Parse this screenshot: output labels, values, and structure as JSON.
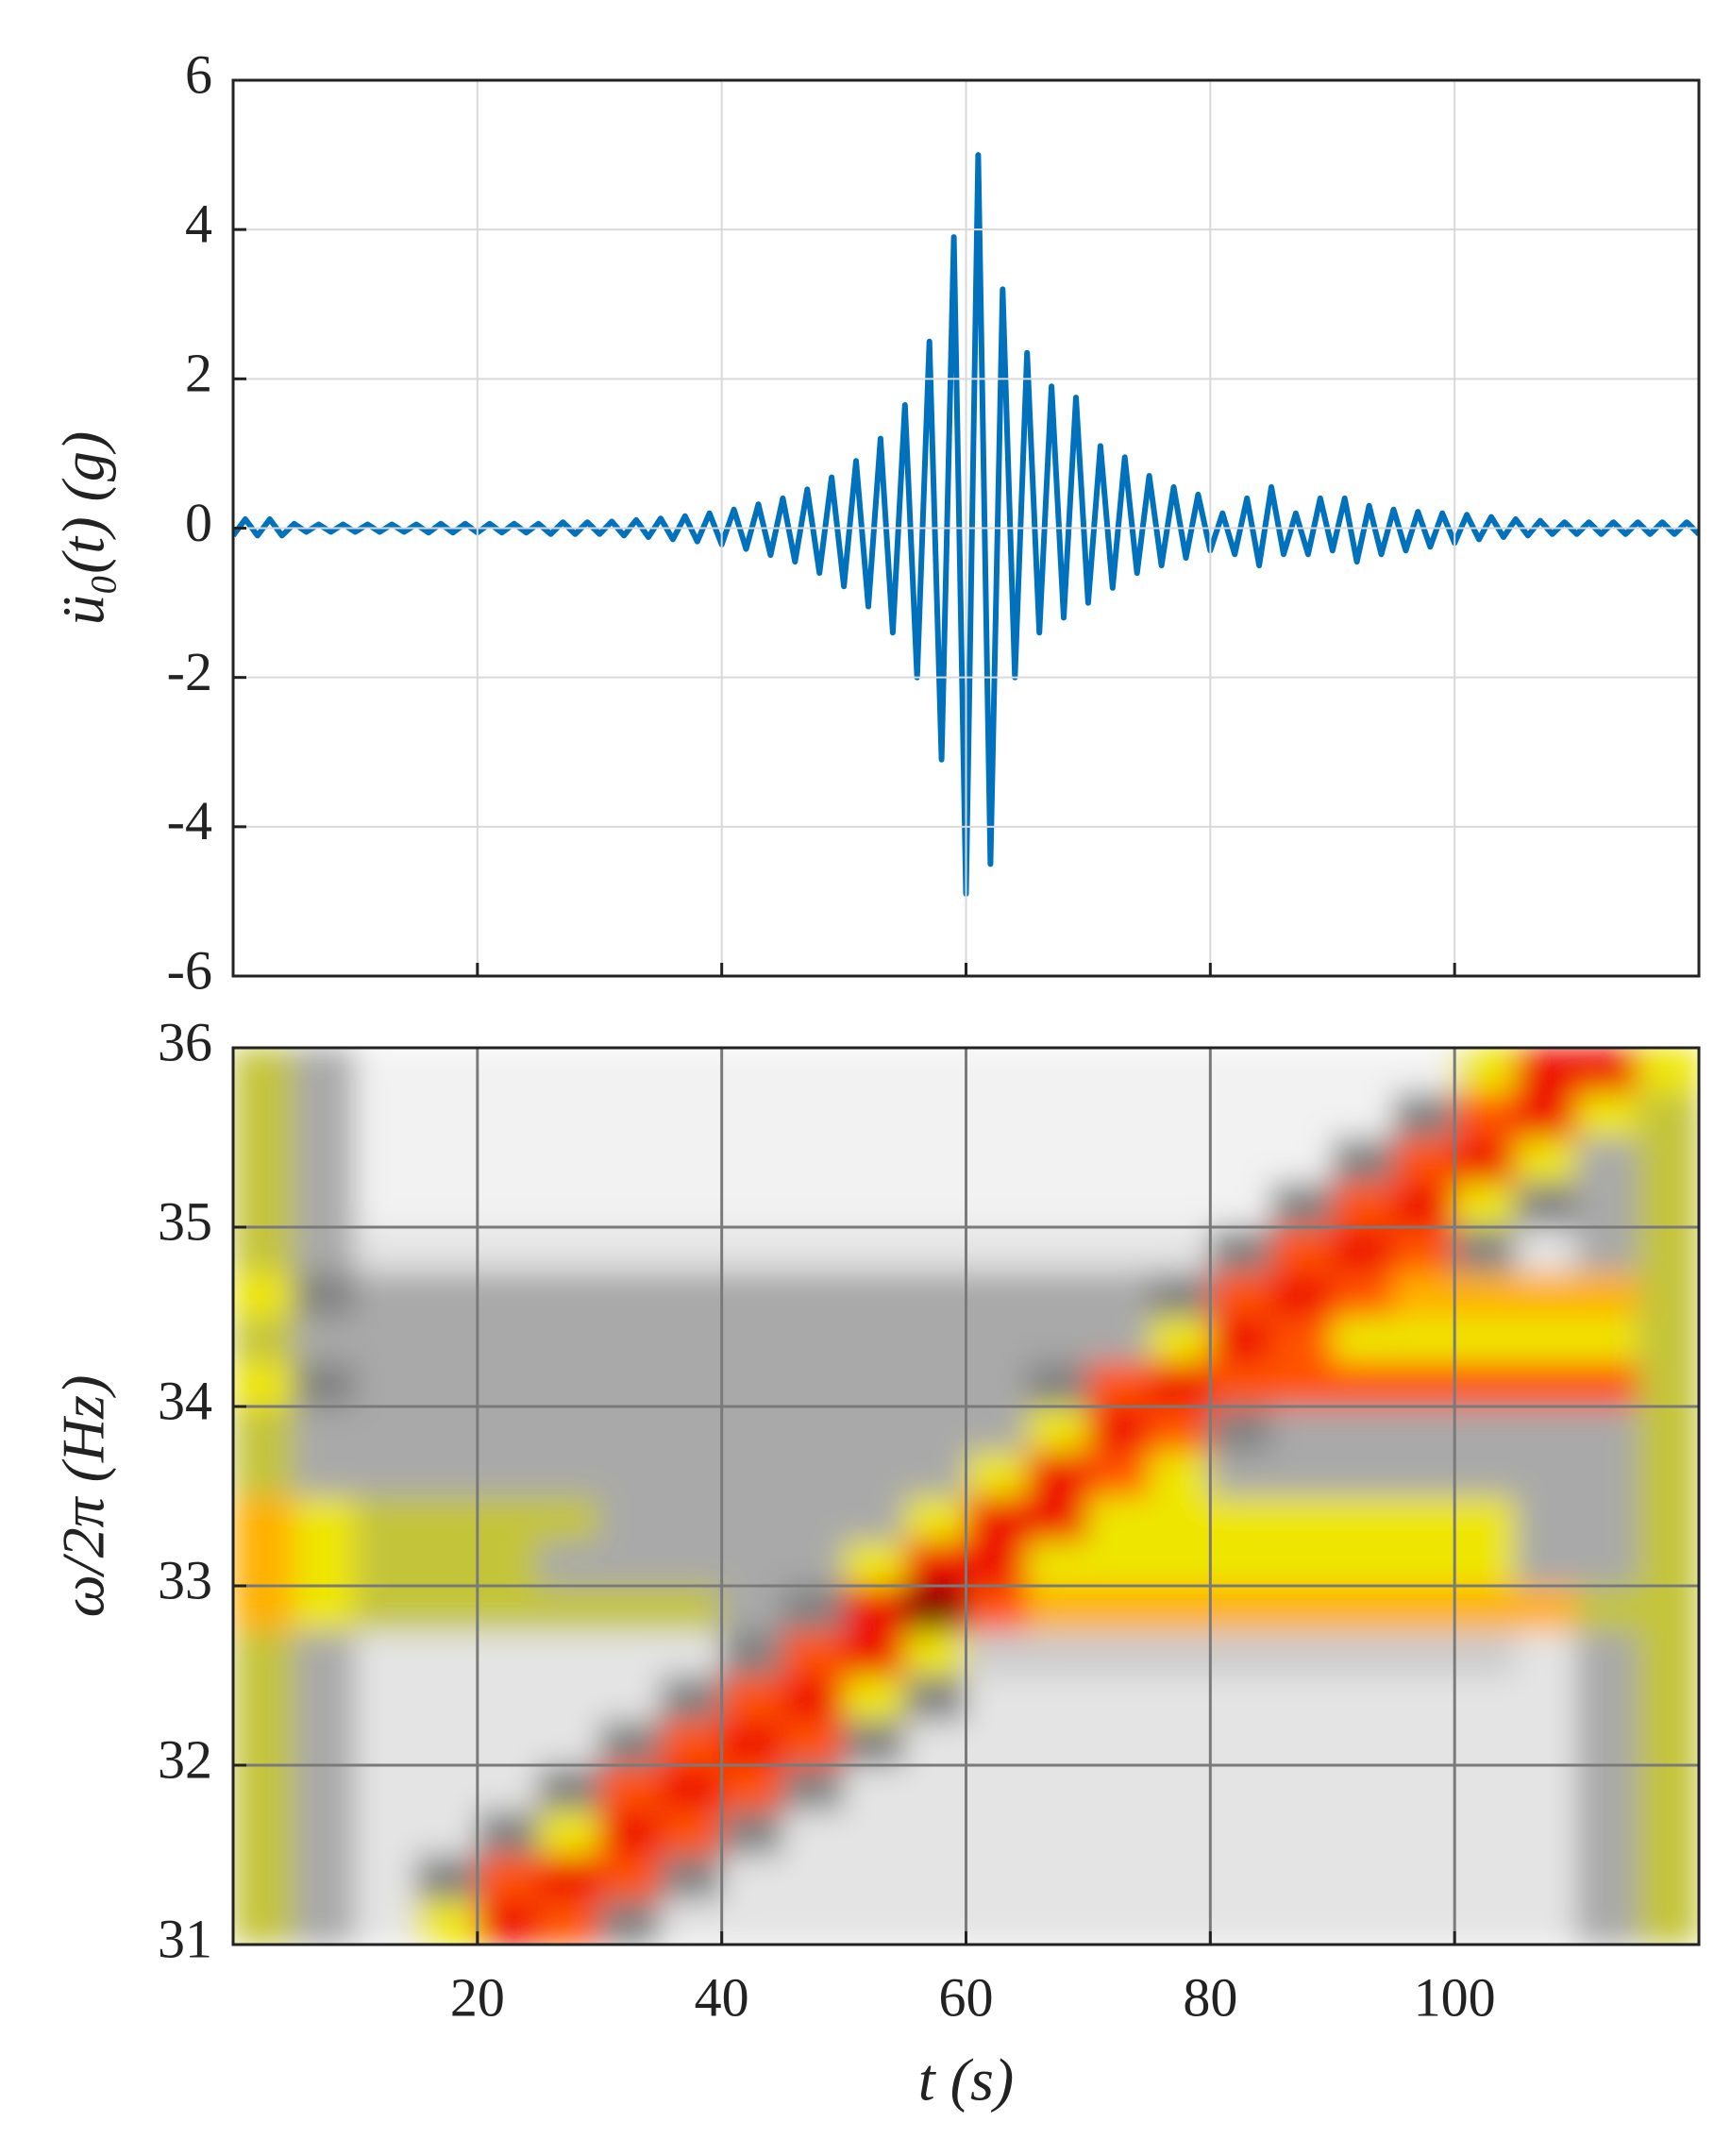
{
  "chart_data": [
    {
      "type": "line",
      "ylabel": "ü₀(t)  (g)",
      "x": [
        0,
        1,
        2,
        3,
        4,
        5,
        6,
        7,
        8,
        9,
        10,
        11,
        12,
        13,
        14,
        15,
        16,
        17,
        18,
        19,
        20,
        21,
        22,
        23,
        24,
        25,
        26,
        27,
        28,
        29,
        30,
        31,
        32,
        33,
        34,
        35,
        36,
        37,
        38,
        39,
        40,
        41,
        42,
        43,
        44,
        45,
        46,
        47,
        48,
        49,
        50,
        51,
        52,
        53,
        54,
        55,
        56,
        57,
        58,
        59,
        60,
        61,
        62,
        63,
        64,
        65,
        66,
        67,
        68,
        69,
        70,
        71,
        72,
        73,
        74,
        75,
        76,
        77,
        78,
        79,
        80,
        81,
        82,
        83,
        84,
        85,
        86,
        87,
        88,
        89,
        90,
        91,
        92,
        93,
        94,
        95,
        96,
        97,
        98,
        99,
        100,
        101,
        102,
        103,
        104,
        105,
        106,
        107,
        108,
        109,
        110,
        111,
        112,
        113,
        114,
        115,
        116,
        117,
        118,
        119,
        120
      ],
      "series": [
        {
          "color": "#0072bd",
          "values": [
            -0.1,
            0.12,
            -0.1,
            0.12,
            -0.1,
            0.06,
            -0.05,
            0.05,
            -0.05,
            0.05,
            -0.05,
            0.05,
            -0.05,
            0.05,
            -0.05,
            0.05,
            -0.06,
            0.06,
            -0.06,
            0.06,
            -0.06,
            0.06,
            -0.06,
            0.06,
            -0.06,
            0.06,
            -0.08,
            0.08,
            -0.08,
            0.08,
            -0.08,
            0.09,
            -0.1,
            0.11,
            -0.12,
            0.13,
            -0.15,
            0.16,
            -0.18,
            0.2,
            -0.22,
            0.25,
            -0.28,
            0.32,
            -0.36,
            0.4,
            -0.45,
            0.52,
            -0.6,
            0.68,
            -0.78,
            0.9,
            -1.05,
            1.2,
            -1.4,
            1.65,
            -2.0,
            2.5,
            -3.1,
            3.9,
            -4.9,
            5.0,
            -4.5,
            3.2,
            -2.0,
            2.35,
            -1.4,
            1.9,
            -1.2,
            1.75,
            -1.0,
            1.1,
            -0.8,
            0.95,
            -0.6,
            0.7,
            -0.5,
            0.55,
            -0.4,
            0.45,
            -0.3,
            0.2,
            -0.35,
            0.4,
            -0.5,
            0.55,
            -0.35,
            0.2,
            -0.35,
            0.4,
            -0.3,
            0.4,
            -0.45,
            0.3,
            -0.35,
            0.25,
            -0.3,
            0.22,
            -0.25,
            0.2,
            -0.2,
            0.18,
            -0.15,
            0.15,
            -0.12,
            0.12,
            -0.1,
            0.1,
            -0.08,
            0.08,
            -0.08,
            0.08,
            -0.08,
            0.08,
            -0.08,
            0.08,
            -0.08,
            0.08,
            -0.08,
            0.08,
            -0.08
          ]
        }
      ],
      "xlim": [
        0,
        120
      ],
      "xticks": [
        20,
        40,
        60,
        80,
        100
      ],
      "xtick_labels": false,
      "ylim": [
        -6,
        6
      ],
      "yticks": [
        -6,
        -4,
        -2,
        0,
        2,
        4,
        6
      ],
      "grid": true,
      "grid_color": "#d9d9d9"
    },
    {
      "type": "heatmap",
      "xlabel": "t  (s)",
      "ylabel": "ω/2π  (Hz)",
      "xbins": [
        0,
        5,
        10,
        15,
        20,
        25,
        30,
        35,
        40,
        45,
        50,
        55,
        60,
        65,
        70,
        75,
        80,
        85,
        90,
        95,
        100,
        105,
        110,
        115,
        120
      ],
      "ybins": [
        31,
        31.25,
        31.5,
        31.75,
        32,
        32.25,
        32.5,
        32.75,
        33,
        33.25,
        33.5,
        33.75,
        34,
        34.25,
        34.5,
        34.75,
        35,
        35.25,
        35.5,
        35.75,
        36
      ],
      "colors": [
        "#f2f2f2",
        "#e4e4e4",
        "#cccccc",
        "#a9a9a9",
        "#828282",
        "#c4c43a",
        "#eee600",
        "#ffb000",
        "#ff5200",
        "#ee1100",
        "#7a0000"
      ],
      "z": [
        [
          5,
          3,
          1,
          6,
          9,
          8,
          4,
          1,
          1,
          1,
          1,
          1,
          1,
          1,
          1,
          1,
          1,
          1,
          1,
          1,
          1,
          1,
          3,
          5
        ],
        [
          5,
          3,
          1,
          4,
          8,
          9,
          8,
          4,
          1,
          1,
          1,
          1,
          1,
          1,
          1,
          1,
          1,
          1,
          1,
          1,
          1,
          1,
          3,
          5
        ],
        [
          5,
          3,
          1,
          1,
          4,
          6,
          9,
          8,
          4,
          1,
          1,
          1,
          1,
          1,
          1,
          1,
          1,
          1,
          1,
          1,
          1,
          1,
          3,
          5
        ],
        [
          5,
          3,
          1,
          1,
          1,
          4,
          8,
          9,
          8,
          4,
          1,
          1,
          1,
          1,
          1,
          1,
          1,
          1,
          1,
          1,
          1,
          1,
          3,
          5
        ],
        [
          5,
          3,
          1,
          1,
          1,
          1,
          4,
          8,
          9,
          8,
          4,
          1,
          1,
          1,
          1,
          1,
          1,
          1,
          1,
          1,
          1,
          1,
          3,
          5
        ],
        [
          5,
          3,
          1,
          1,
          1,
          1,
          1,
          4,
          8,
          9,
          6,
          4,
          1,
          1,
          1,
          1,
          1,
          1,
          1,
          1,
          1,
          1,
          3,
          5
        ],
        [
          5,
          3,
          1,
          1,
          1,
          1,
          1,
          1,
          4,
          8,
          9,
          6,
          2,
          2,
          2,
          2,
          2,
          2,
          2,
          2,
          2,
          1,
          3,
          5
        ],
        [
          7,
          6,
          5,
          5,
          5,
          5,
          5,
          5,
          3,
          4,
          9,
          10,
          8,
          7,
          7,
          7,
          7,
          7,
          7,
          7,
          7,
          7,
          5,
          5
        ],
        [
          7,
          6,
          5,
          5,
          5,
          3,
          3,
          3,
          3,
          3,
          6,
          9,
          9,
          6,
          6,
          6,
          6,
          6,
          6,
          6,
          6,
          3,
          3,
          5
        ],
        [
          7,
          6,
          5,
          5,
          5,
          5,
          3,
          3,
          3,
          3,
          3,
          6,
          9,
          9,
          6,
          6,
          6,
          6,
          6,
          6,
          6,
          3,
          3,
          5
        ],
        [
          5,
          3,
          3,
          3,
          3,
          3,
          3,
          3,
          3,
          3,
          3,
          3,
          6,
          9,
          8,
          6,
          3,
          3,
          3,
          3,
          3,
          3,
          3,
          5
        ],
        [
          5,
          3,
          3,
          3,
          3,
          3,
          3,
          3,
          3,
          3,
          3,
          3,
          3,
          6,
          9,
          8,
          4,
          3,
          3,
          3,
          3,
          3,
          3,
          5
        ],
        [
          6,
          4,
          3,
          3,
          3,
          3,
          3,
          3,
          3,
          3,
          3,
          3,
          3,
          4,
          8,
          9,
          8,
          8,
          8,
          8,
          8,
          8,
          8,
          5
        ],
        [
          5,
          3,
          3,
          3,
          3,
          3,
          3,
          3,
          3,
          3,
          3,
          3,
          3,
          3,
          3,
          6,
          9,
          8,
          6,
          6,
          6,
          6,
          6,
          5
        ],
        [
          6,
          4,
          3,
          3,
          3,
          3,
          3,
          3,
          3,
          3,
          3,
          3,
          3,
          3,
          3,
          4,
          8,
          9,
          8,
          7,
          7,
          7,
          7,
          5
        ],
        [
          5,
          3,
          1,
          1,
          1,
          1,
          1,
          1,
          1,
          1,
          1,
          1,
          1,
          1,
          1,
          1,
          4,
          8,
          9,
          8,
          4,
          1,
          3,
          5
        ],
        [
          5,
          3,
          0,
          0,
          0,
          0,
          0,
          0,
          0,
          0,
          0,
          0,
          0,
          0,
          0,
          0,
          0,
          4,
          8,
          9,
          6,
          4,
          3,
          5
        ],
        [
          5,
          3,
          0,
          0,
          0,
          0,
          0,
          0,
          0,
          0,
          0,
          0,
          0,
          0,
          0,
          0,
          0,
          0,
          4,
          8,
          9,
          6,
          3,
          5
        ],
        [
          5,
          3,
          0,
          0,
          0,
          0,
          0,
          0,
          0,
          0,
          0,
          0,
          0,
          0,
          0,
          0,
          0,
          0,
          0,
          4,
          8,
          9,
          6,
          5
        ],
        [
          5,
          3,
          0,
          0,
          0,
          0,
          0,
          0,
          0,
          0,
          0,
          0,
          0,
          0,
          0,
          0,
          0,
          0,
          0,
          0,
          6,
          9,
          9,
          6
        ]
      ],
      "xlim": [
        0,
        120
      ],
      "xticks": [
        20,
        40,
        60,
        80,
        100
      ],
      "xtick_labels": true,
      "ylim": [
        31,
        36
      ],
      "yticks": [
        31,
        32,
        33,
        34,
        35,
        36
      ],
      "grid": true,
      "grid_color": "#7a7a7a"
    }
  ]
}
